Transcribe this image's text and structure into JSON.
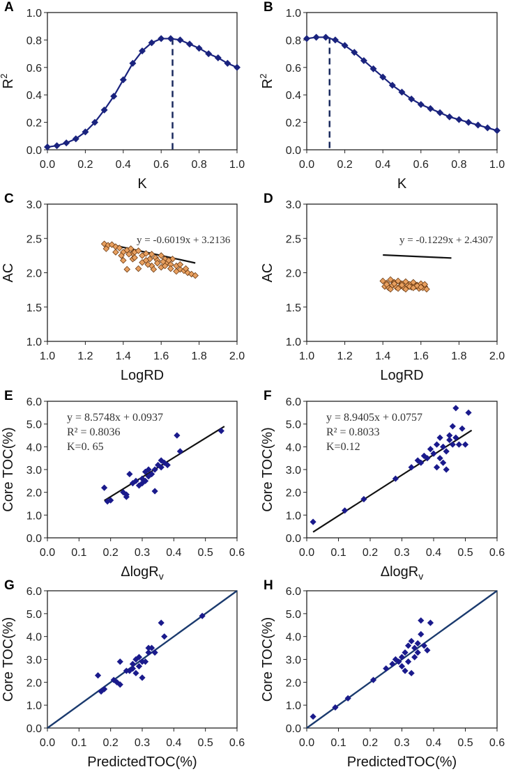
{
  "chart_data": [
    {
      "id": "A",
      "type": "line",
      "panel_label": "A",
      "xlabel": "K",
      "ylabel": "R2",
      "xlim": [
        0,
        1
      ],
      "ylim": [
        0,
        1
      ],
      "xticks": [
        "0.0",
        "0.2",
        "0.4",
        "0.6",
        "0.8",
        "1.0"
      ],
      "yticks": [
        "0.0",
        "0.2",
        "0.4",
        "0.6",
        "0.8",
        "1.0"
      ],
      "x": [
        0,
        0.05,
        0.1,
        0.15,
        0.2,
        0.25,
        0.3,
        0.35,
        0.4,
        0.45,
        0.5,
        0.55,
        0.6,
        0.65,
        0.7,
        0.75,
        0.8,
        0.85,
        0.9,
        0.95,
        1.0
      ],
      "y": [
        0.02,
        0.03,
        0.05,
        0.08,
        0.13,
        0.2,
        0.29,
        0.39,
        0.51,
        0.63,
        0.72,
        0.78,
        0.81,
        0.81,
        0.8,
        0.77,
        0.74,
        0.7,
        0.67,
        0.63,
        0.6
      ],
      "vline_x": 0.66,
      "marker": "diamond",
      "color": "#1a237e"
    },
    {
      "id": "B",
      "type": "line",
      "panel_label": "B",
      "xlabel": "K",
      "ylabel": "R2",
      "xlim": [
        0,
        1
      ],
      "ylim": [
        0,
        1
      ],
      "xticks": [
        "0.0",
        "0.2",
        "0.4",
        "0.6",
        "0.8",
        "1.0"
      ],
      "yticks": [
        "0.0",
        "0.2",
        "0.4",
        "0.6",
        "0.8",
        "1.0"
      ],
      "x": [
        0,
        0.05,
        0.1,
        0.15,
        0.2,
        0.25,
        0.3,
        0.35,
        0.4,
        0.45,
        0.5,
        0.55,
        0.6,
        0.65,
        0.7,
        0.75,
        0.8,
        0.85,
        0.9,
        0.95,
        1.0
      ],
      "y": [
        0.81,
        0.82,
        0.82,
        0.8,
        0.76,
        0.71,
        0.65,
        0.59,
        0.53,
        0.47,
        0.42,
        0.37,
        0.33,
        0.3,
        0.27,
        0.24,
        0.22,
        0.2,
        0.18,
        0.16,
        0.14
      ],
      "vline_x": 0.12,
      "marker": "diamond",
      "color": "#1a237e"
    },
    {
      "id": "C",
      "type": "scatter",
      "panel_label": "C",
      "xlabel": "LogRD",
      "ylabel": "AC",
      "xlim": [
        1,
        2
      ],
      "ylim": [
        1,
        3
      ],
      "xticks": [
        "1.0",
        "1.2",
        "1.4",
        "1.6",
        "1.8",
        "2.0"
      ],
      "yticks": [
        "1.0",
        "1.5",
        "2.0",
        "2.5",
        "3.0"
      ],
      "equation": "y = -0.6019x + 3.2136",
      "fit": {
        "slope": -0.6019,
        "intercept": 3.2136,
        "xrange": [
          1.3,
          1.78
        ]
      },
      "points": [
        [
          1.3,
          2.42
        ],
        [
          1.32,
          2.4
        ],
        [
          1.34,
          2.41
        ],
        [
          1.36,
          2.38
        ],
        [
          1.31,
          2.35
        ],
        [
          1.38,
          2.36
        ],
        [
          1.4,
          2.3
        ],
        [
          1.42,
          2.33
        ],
        [
          1.44,
          2.35
        ],
        [
          1.45,
          2.28
        ],
        [
          1.46,
          2.3
        ],
        [
          1.48,
          2.32
        ],
        [
          1.5,
          2.25
        ],
        [
          1.52,
          2.28
        ],
        [
          1.54,
          2.2
        ],
        [
          1.55,
          2.27
        ],
        [
          1.57,
          2.22
        ],
        [
          1.58,
          2.18
        ],
        [
          1.6,
          2.25
        ],
        [
          1.62,
          2.2
        ],
        [
          1.63,
          2.15
        ],
        [
          1.65,
          2.12
        ],
        [
          1.66,
          2.2
        ],
        [
          1.68,
          2.1
        ],
        [
          1.7,
          2.05
        ],
        [
          1.72,
          2.03
        ],
        [
          1.74,
          2.0
        ],
        [
          1.76,
          1.98
        ],
        [
          1.78,
          1.96
        ],
        [
          1.4,
          2.18
        ],
        [
          1.45,
          2.2
        ],
        [
          1.5,
          2.15
        ],
        [
          1.55,
          2.1
        ],
        [
          1.6,
          2.08
        ],
        [
          1.65,
          2.06
        ],
        [
          1.42,
          2.05
        ],
        [
          1.48,
          2.06
        ],
        [
          1.53,
          2.12
        ],
        [
          1.58,
          2.14
        ],
        [
          1.62,
          2.1
        ],
        [
          1.68,
          2.02
        ],
        [
          1.56,
          2.05
        ],
        [
          1.46,
          2.22
        ],
        [
          1.52,
          2.18
        ],
        [
          1.36,
          2.3
        ],
        [
          1.39,
          2.25
        ],
        [
          1.43,
          2.27
        ],
        [
          1.61,
          2.16
        ],
        [
          1.64,
          2.18
        ],
        [
          1.7,
          2.12
        ],
        [
          1.73,
          2.06
        ]
      ],
      "marker_color": "#e8a060",
      "line_color": "#111111"
    },
    {
      "id": "D",
      "type": "scatter",
      "panel_label": "D",
      "xlabel": "LogRD",
      "ylabel": "AC",
      "xlim": [
        1,
        2
      ],
      "ylim": [
        1,
        3
      ],
      "xticks": [
        "1.0",
        "1.2",
        "1.4",
        "1.6",
        "1.8",
        "2.0"
      ],
      "yticks": [
        "1.0",
        "1.5",
        "2.0",
        "2.5",
        "3.0"
      ],
      "equation": "y = -0.1229x + 2.4307",
      "fit": {
        "slope": -0.1229,
        "intercept": 2.4307,
        "xrange": [
          1.4,
          1.76
        ]
      },
      "points": [
        [
          1.4,
          1.88
        ],
        [
          1.42,
          1.85
        ],
        [
          1.44,
          1.9
        ],
        [
          1.46,
          1.86
        ],
        [
          1.48,
          1.88
        ],
        [
          1.5,
          1.84
        ],
        [
          1.52,
          1.87
        ],
        [
          1.54,
          1.83
        ],
        [
          1.56,
          1.86
        ],
        [
          1.58,
          1.82
        ],
        [
          1.6,
          1.84
        ],
        [
          1.62,
          1.8
        ],
        [
          1.41,
          1.8
        ],
        [
          1.43,
          1.78
        ],
        [
          1.45,
          1.82
        ],
        [
          1.47,
          1.79
        ],
        [
          1.49,
          1.8
        ],
        [
          1.51,
          1.78
        ],
        [
          1.53,
          1.81
        ],
        [
          1.55,
          1.79
        ],
        [
          1.57,
          1.8
        ],
        [
          1.59,
          1.77
        ],
        [
          1.61,
          1.78
        ],
        [
          1.63,
          1.76
        ],
        [
          1.42,
          1.83
        ],
        [
          1.46,
          1.84
        ],
        [
          1.5,
          1.82
        ],
        [
          1.54,
          1.8
        ],
        [
          1.58,
          1.81
        ],
        [
          1.44,
          1.76
        ],
        [
          1.48,
          1.77
        ],
        [
          1.52,
          1.76
        ],
        [
          1.56,
          1.78
        ],
        [
          1.6,
          1.79
        ],
        [
          1.62,
          1.83
        ]
      ],
      "marker_color": "#e8a060",
      "line_color": "#111111"
    },
    {
      "id": "E",
      "type": "scatter",
      "panel_label": "E",
      "xlabel": "ΔlogRv",
      "ylabel": "Core TOC(%)",
      "xlim": [
        0,
        0.6
      ],
      "ylim": [
        0,
        6
      ],
      "xticks": [
        "0.0",
        "0.1",
        "0.2",
        "0.3",
        "0.4",
        "0.5",
        "0.6"
      ],
      "yticks": [
        "0.0",
        "1.0",
        "2.0",
        "3.0",
        "4.0",
        "5.0",
        "6.0"
      ],
      "equation": "y = 8.5748x + 0.0937",
      "r2_text": "R² = 0.8036",
      "k_text": "K=0. 65",
      "fit": {
        "slope": 8.5748,
        "intercept": 0.0937,
        "xrange": [
          0.18,
          0.56
        ]
      },
      "points": [
        [
          0.18,
          2.2
        ],
        [
          0.19,
          1.6
        ],
        [
          0.2,
          1.65
        ],
        [
          0.24,
          2.0
        ],
        [
          0.25,
          1.9
        ],
        [
          0.25,
          1.8
        ],
        [
          0.26,
          2.8
        ],
        [
          0.27,
          2.4
        ],
        [
          0.28,
          2.5
        ],
        [
          0.29,
          2.3
        ],
        [
          0.3,
          2.6
        ],
        [
          0.3,
          2.4
        ],
        [
          0.31,
          2.9
        ],
        [
          0.31,
          2.5
        ],
        [
          0.32,
          3.0
        ],
        [
          0.32,
          2.7
        ],
        [
          0.33,
          2.8
        ],
        [
          0.34,
          2.05
        ],
        [
          0.34,
          3.0
        ],
        [
          0.35,
          3.2
        ],
        [
          0.36,
          3.4
        ],
        [
          0.36,
          3.1
        ],
        [
          0.37,
          3.3
        ],
        [
          0.38,
          3.2
        ],
        [
          0.41,
          4.5
        ],
        [
          0.42,
          3.8
        ],
        [
          0.55,
          4.7
        ]
      ],
      "marker_color": "#1a1a8c",
      "line_color": "#111111"
    },
    {
      "id": "F",
      "type": "scatter",
      "panel_label": "F",
      "xlabel": "ΔlogRv",
      "ylabel": "Core TOC(%)",
      "xlim": [
        0,
        0.6
      ],
      "ylim": [
        0,
        6
      ],
      "xticks": [
        "0.0",
        "0.1",
        "0.2",
        "0.3",
        "0.4",
        "0.5",
        "0.6"
      ],
      "yticks": [
        "0.0",
        "1.0",
        "2.0",
        "3.0",
        "4.0",
        "5.0",
        "6.0"
      ],
      "equation": "y = 8.9405x + 0.0757",
      "r2_text": "R² = 0.8033",
      "k_text": "K=0.12",
      "fit": {
        "slope": 8.9405,
        "intercept": 0.0757,
        "xrange": [
          0.02,
          0.52
        ]
      },
      "points": [
        [
          0.02,
          0.7
        ],
        [
          0.12,
          1.2
        ],
        [
          0.18,
          1.7
        ],
        [
          0.28,
          2.6
        ],
        [
          0.33,
          3.1
        ],
        [
          0.35,
          3.4
        ],
        [
          0.36,
          3.3
        ],
        [
          0.37,
          3.6
        ],
        [
          0.38,
          3.5
        ],
        [
          0.39,
          3.9
        ],
        [
          0.4,
          3.7
        ],
        [
          0.41,
          3.1
        ],
        [
          0.41,
          4.1
        ],
        [
          0.42,
          4.4
        ],
        [
          0.42,
          3.5
        ],
        [
          0.43,
          4.0
        ],
        [
          0.43,
          3.3
        ],
        [
          0.44,
          3.0
        ],
        [
          0.44,
          3.8
        ],
        [
          0.45,
          4.5
        ],
        [
          0.45,
          4.3
        ],
        [
          0.46,
          4.9
        ],
        [
          0.46,
          4.1
        ],
        [
          0.47,
          5.7
        ],
        [
          0.47,
          4.4
        ],
        [
          0.48,
          4.1
        ],
        [
          0.49,
          4.8
        ],
        [
          0.5,
          4.1
        ],
        [
          0.51,
          5.5
        ]
      ],
      "marker_color": "#1a1a8c",
      "line_color": "#111111"
    },
    {
      "id": "G",
      "type": "scatter",
      "panel_label": "G",
      "xlabel": "PredictedTOC(%)",
      "ylabel": "Core TOC(%)",
      "xlim": [
        0,
        0.6
      ],
      "ylim": [
        0,
        6
      ],
      "xticks": [
        "0.0",
        "0.1",
        "0.2",
        "0.3",
        "0.4",
        "0.5",
        "0.6"
      ],
      "yticks": [
        "0.0",
        "1.0",
        "2.0",
        "3.0",
        "4.0",
        "5.0",
        "6.0"
      ],
      "fit": {
        "slope": 10,
        "intercept": 0,
        "xrange": [
          0,
          0.6
        ]
      },
      "points": [
        [
          0.16,
          2.3
        ],
        [
          0.17,
          1.6
        ],
        [
          0.18,
          1.7
        ],
        [
          0.21,
          2.1
        ],
        [
          0.22,
          2.0
        ],
        [
          0.23,
          1.9
        ],
        [
          0.23,
          2.9
        ],
        [
          0.25,
          2.5
        ],
        [
          0.26,
          2.5
        ],
        [
          0.27,
          2.6
        ],
        [
          0.27,
          2.8
        ],
        [
          0.28,
          3.0
        ],
        [
          0.28,
          2.4
        ],
        [
          0.29,
          3.1
        ],
        [
          0.29,
          2.7
        ],
        [
          0.3,
          2.9
        ],
        [
          0.3,
          2.2
        ],
        [
          0.31,
          2.9
        ],
        [
          0.32,
          3.5
        ],
        [
          0.32,
          3.3
        ],
        [
          0.33,
          3.5
        ],
        [
          0.34,
          3.3
        ],
        [
          0.36,
          4.6
        ],
        [
          0.37,
          4.0
        ],
        [
          0.49,
          4.9
        ]
      ],
      "marker_color": "#1a1a8c",
      "line_color": "#1a3a6e"
    },
    {
      "id": "H",
      "type": "scatter",
      "panel_label": "H",
      "xlabel": "PredictedTOC(%)",
      "ylabel": "Core TOC(%)",
      "xlim": [
        0,
        0.6
      ],
      "ylim": [
        0,
        6
      ],
      "xticks": [
        "0.0",
        "0.1",
        "0.2",
        "0.3",
        "0.4",
        "0.5",
        "0.6"
      ],
      "yticks": [
        "0.0",
        "1.0",
        "2.0",
        "3.0",
        "4.0",
        "5.0",
        "6.0"
      ],
      "fit": {
        "slope": 10,
        "intercept": 0,
        "xrange": [
          0,
          0.6
        ]
      },
      "points": [
        [
          0.02,
          0.5
        ],
        [
          0.09,
          0.9
        ],
        [
          0.13,
          1.3
        ],
        [
          0.21,
          2.1
        ],
        [
          0.25,
          2.6
        ],
        [
          0.27,
          2.8
        ],
        [
          0.28,
          3.0
        ],
        [
          0.29,
          2.9
        ],
        [
          0.3,
          3.1
        ],
        [
          0.3,
          2.7
        ],
        [
          0.31,
          3.3
        ],
        [
          0.31,
          2.5
        ],
        [
          0.32,
          3.6
        ],
        [
          0.32,
          2.9
        ],
        [
          0.33,
          3.8
        ],
        [
          0.33,
          2.4
        ],
        [
          0.34,
          3.5
        ],
        [
          0.34,
          3.1
        ],
        [
          0.35,
          3.7
        ],
        [
          0.35,
          3.3
        ],
        [
          0.36,
          4.1
        ],
        [
          0.36,
          4.7
        ],
        [
          0.37,
          3.6
        ],
        [
          0.38,
          3.4
        ],
        [
          0.39,
          4.6
        ]
      ],
      "marker_color": "#1a1a8c",
      "line_color": "#1a3a6e"
    }
  ]
}
